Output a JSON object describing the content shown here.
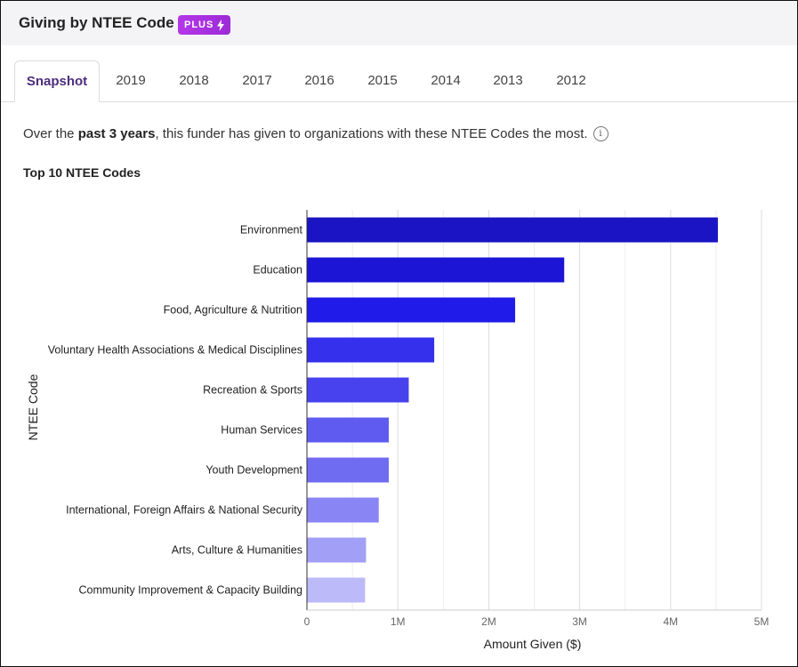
{
  "header": {
    "title": "Giving by NTEE Code",
    "badge": "PLUS",
    "badge_icon": "lightning-bolt-icon"
  },
  "tabs": [
    {
      "label": "Snapshot",
      "active": true
    },
    {
      "label": "2019",
      "active": false
    },
    {
      "label": "2018",
      "active": false
    },
    {
      "label": "2017",
      "active": false
    },
    {
      "label": "2016",
      "active": false
    },
    {
      "label": "2015",
      "active": false
    },
    {
      "label": "2014",
      "active": false
    },
    {
      "label": "2013",
      "active": false
    },
    {
      "label": "2012",
      "active": false
    }
  ],
  "description": {
    "prefix": "Over the ",
    "bold": "past 3 years",
    "suffix": ", this funder has given to organizations with these NTEE Codes the most.",
    "info_icon": "i"
  },
  "section_title": "Top 10 NTEE Codes",
  "colors": {
    "accent": "#4c2d7d",
    "badge": "#a631df",
    "bar_gradient": [
      "#1a14c4",
      "#1c15d6",
      "#211bea",
      "#3530ec",
      "#4842ee",
      "#5f5bf0",
      "#706cf2",
      "#8985f4",
      "#a29ff7",
      "#bdbaf9"
    ]
  },
  "chart_data": {
    "type": "bar",
    "orientation": "horizontal",
    "categories": [
      "Environment",
      "Education",
      "Food, Agriculture & Nutrition",
      "Voluntary Health Associations & Medical Disciplines",
      "Recreation & Sports",
      "Human Services",
      "Youth Development",
      "International, Foreign Affairs & National Security",
      "Arts, Culture & Humanities",
      "Community Improvement & Capacity Building"
    ],
    "values": [
      4520000,
      2830000,
      2290000,
      1400000,
      1120000,
      900000,
      900000,
      790000,
      650000,
      640000
    ],
    "xlabel": "Amount Given ($)",
    "ylabel": "NTEE Code",
    "xlim": [
      0,
      5000000
    ],
    "xticks": [
      0,
      1000000,
      2000000,
      3000000,
      4000000,
      5000000
    ],
    "xtick_labels": [
      "0",
      "1M",
      "2M",
      "3M",
      "4M",
      "5M"
    ],
    "grid": true
  }
}
